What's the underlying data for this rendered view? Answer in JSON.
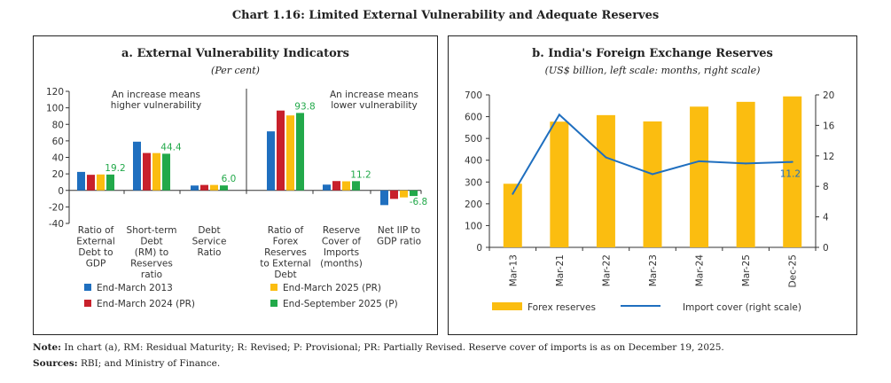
{
  "figure_title": "Chart 1.16: Limited External Vulnerability and Adequate Reserves",
  "colors": {
    "blue": "#1f6fbf",
    "red": "#c8202b",
    "yellow": "#fbbd10",
    "green": "#22a94a",
    "line": "#1f6fbf"
  },
  "chart_data": [
    {
      "type": "bar",
      "title": "a. External Vulnerability Indicators",
      "subtitle": "(Per cent)",
      "categories": [
        "Ratio of External Debt to GDP",
        "Short-term Debt (RM) to Reserves ratio",
        "Debt Service Ratio",
        "Ratio of Forex Reserves to External Debt",
        "Reserve Cover of Imports (months)",
        "Net IIP to GDP ratio"
      ],
      "category_lines": [
        [
          "Ratio of",
          "External",
          "Debt to",
          "GDP"
        ],
        [
          "Short-term",
          "Debt",
          "(RM) to",
          "Reserves",
          "ratio"
        ],
        [
          "Debt",
          "Service",
          "Ratio"
        ],
        [
          "Ratio of",
          "Forex",
          "Reserves",
          "to External",
          "Debt"
        ],
        [
          "Reserve",
          "Cover of",
          "Imports",
          "(months)"
        ],
        [
          "Net IIP to",
          "GDP ratio"
        ]
      ],
      "series": [
        {
          "name": "End-March 2013",
          "values": [
            22.4,
            59.0,
            5.9,
            71.5,
            7.0,
            -17.8
          ]
        },
        {
          "name": "End-March 2024 (PR)",
          "values": [
            18.9,
            45.3,
            6.6,
            96.7,
            11.3,
            -10.3
          ]
        },
        {
          "name": "End-March 2025 (PR)",
          "values": [
            19.3,
            45.2,
            6.6,
            90.8,
            11.0,
            -8.5
          ]
        },
        {
          "name": "End-September 2025 (P)",
          "values": [
            19.2,
            44.4,
            6.0,
            93.8,
            11.2,
            -6.8
          ]
        }
      ],
      "data_labels": [
        "19.2",
        "44.4",
        "6.0",
        "93.8",
        "11.2",
        "-6.8"
      ],
      "ylim": [
        -40,
        120
      ],
      "yticks": [
        -40,
        -20,
        0,
        20,
        40,
        60,
        80,
        100,
        120
      ],
      "annotations": [
        [
          "An increase means",
          "higher vulnerability"
        ],
        [
          "An increase means",
          "lower vulnerability"
        ]
      ],
      "legend": "bottom",
      "grid": false
    },
    {
      "type": "bar+line",
      "title": "b. India's Foreign Exchange Reserves",
      "subtitle": "(US$ billion, left scale: months, right scale)",
      "categories": [
        "Mar-13",
        "Mar-21",
        "Mar-22",
        "Mar-23",
        "Mar-24",
        "Mar-25",
        "Dec-25"
      ],
      "series": [
        {
          "name": "Forex reserves",
          "axis": "left",
          "values": [
            292,
            577,
            607,
            578,
            646,
            668,
            693
          ]
        },
        {
          "name": "Import cover (right scale)",
          "axis": "right",
          "values": [
            7.0,
            17.4,
            11.8,
            9.6,
            11.3,
            11.0,
            11.2
          ]
        }
      ],
      "data_labels": [
        "11.2"
      ],
      "ylim_left": [
        0,
        700
      ],
      "yticks_left": [
        0,
        100,
        200,
        300,
        400,
        500,
        600,
        700
      ],
      "ylim_right": [
        0,
        20
      ],
      "yticks_right": [
        0,
        4,
        8,
        12,
        16,
        20
      ],
      "legend": "bottom",
      "grid": false
    }
  ],
  "notes": {
    "note_label": "Note:",
    "note_text": " In chart (a), RM: Residual Maturity; R: Revised; P: Provisional; PR: Partially Revised. Reserve cover of imports is as on December 19, 2025.",
    "sources_label": "Sources:",
    "sources_text": " RBI; and Ministry of Finance."
  }
}
